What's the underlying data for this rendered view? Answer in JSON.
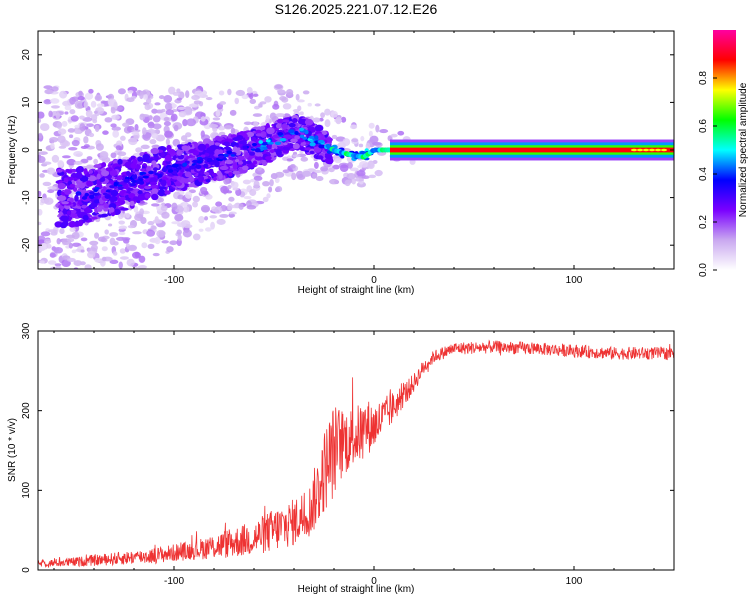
{
  "title": "S126.2025.221.07.12.E26",
  "chart_data": [
    {
      "type": "heatmap",
      "title": "S126.2025.221.07.12.E26",
      "xlabel": "Height of straight line (km)",
      "ylabel": "Frequency (Hz)",
      "xlim": [
        -168,
        150
      ],
      "ylim": [
        -25,
        25
      ],
      "xticks": [
        -100,
        0,
        100
      ],
      "xtick_labels": [
        "-100",
        "0",
        "100"
      ],
      "yticks": [
        -20,
        -10,
        0,
        10,
        20
      ],
      "ytick_labels": [
        "-20",
        "-10",
        "0",
        "10",
        "20"
      ],
      "carrier_trace": {
        "description_x": [
          -150,
          -130,
          -110,
          -90,
          -70,
          -55,
          -45,
          -38,
          -30,
          -20,
          -12,
          -5,
          0,
          8,
          150
        ],
        "frequency_hz": [
          -10,
          -8,
          -5,
          -3,
          -1,
          1,
          3,
          4,
          2,
          0,
          -1,
          -1.5,
          0,
          0,
          0
        ]
      },
      "colorbar": {
        "label": "Normalized spectral amplitude",
        "range": [
          0,
          1
        ],
        "ticks": [
          0.0,
          0.2,
          0.4,
          0.6,
          0.8
        ],
        "tick_labels": [
          "0.0",
          "0.2",
          "0.4",
          "0.6",
          "0.8"
        ],
        "colors": [
          "#ffffff",
          "#c9a8f0",
          "#7a00ff",
          "#0000ff",
          "#00ffff",
          "#00ff00",
          "#ffff00",
          "#ff0000",
          "#ff00a0"
        ]
      }
    },
    {
      "type": "line",
      "xlabel": "Height of straight line (km)",
      "ylabel": "SNR (10 * v/v)",
      "xlim": [
        -168,
        150
      ],
      "ylim": [
        0,
        300
      ],
      "xticks": [
        -100,
        0,
        100
      ],
      "xtick_labels": [
        "-100",
        "0",
        "100"
      ],
      "yticks": [
        0,
        100,
        200,
        300
      ],
      "ytick_labels": [
        "0",
        "100",
        "200",
        "300"
      ],
      "line_color": "#ee3333",
      "series": [
        {
          "name": "SNR",
          "x": [
            -168,
            -150,
            -130,
            -110,
            -90,
            -75,
            -60,
            -50,
            -40,
            -32,
            -28,
            -24,
            -20,
            -16,
            -12,
            -8,
            -4,
            0,
            5,
            10,
            15,
            20,
            25,
            30,
            40,
            60,
            80,
            100,
            120,
            150
          ],
          "y": [
            8,
            10,
            14,
            18,
            25,
            32,
            40,
            50,
            60,
            75,
            100,
            130,
            150,
            160,
            165,
            170,
            180,
            180,
            192,
            205,
            220,
            235,
            255,
            268,
            278,
            280,
            278,
            275,
            272,
            272
          ],
          "noise": [
            4,
            6,
            8,
            10,
            12,
            18,
            22,
            28,
            30,
            34,
            45,
            55,
            60,
            45,
            40,
            38,
            36,
            30,
            25,
            20,
            15,
            12,
            10,
            8,
            8,
            8,
            8,
            8,
            8,
            8
          ]
        }
      ]
    }
  ]
}
